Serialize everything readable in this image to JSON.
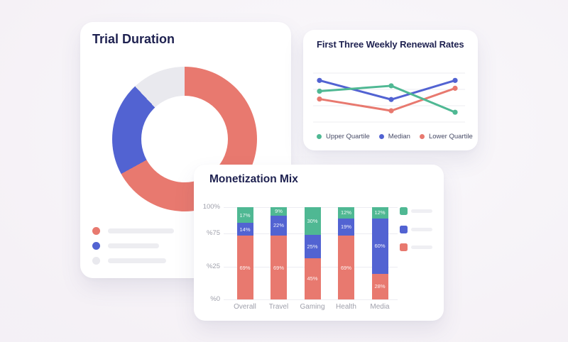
{
  "colors": {
    "coral": "#E8796F",
    "blue": "#5263D2",
    "green": "#4FB893",
    "gray_segment": "#E9E9EE",
    "title_navy": "#1E2150",
    "axis_gray": "#9FA0AB"
  },
  "cards": {
    "trial_duration": {
      "title": "Trial Duration"
    },
    "renewal": {
      "title": "First Three Weekly Renewal Rates"
    },
    "monetization": {
      "title": "Monetization Mix"
    }
  },
  "chart_data": [
    {
      "type": "pie",
      "subtype": "donut",
      "title": "Trial Duration",
      "labels": [
        "coral-segment",
        "blue-segment",
        "gray-segment"
      ],
      "values": [
        67,
        21,
        12
      ],
      "colors": [
        "#E8796F",
        "#5263D2",
        "#E9E9EE"
      ],
      "legend_position": "bottom-left",
      "legend_note": "three placeholder skeleton rows, no text visible"
    },
    {
      "type": "line",
      "title": "First Three Weekly Renewal Rates",
      "x": [
        1,
        2,
        3
      ],
      "series": [
        {
          "name": "Upper Quartile",
          "color": "#4FB893",
          "values": [
            63,
            74,
            20
          ]
        },
        {
          "name": "Median",
          "color": "#5263D2",
          "values": [
            85,
            46,
            85
          ]
        },
        {
          "name": "Lower Quartile",
          "color": "#E8796F",
          "values": [
            47,
            23,
            69
          ]
        }
      ],
      "ylim": [
        0,
        100
      ],
      "grid": true,
      "gridlines": 4,
      "legend_position": "bottom"
    },
    {
      "type": "bar",
      "subtype": "stacked",
      "title": "Monetization Mix",
      "categories": [
        "Overall",
        "Travel",
        "Gaming",
        "Health",
        "Media"
      ],
      "series": [
        {
          "name": "coral-bottom",
          "color": "#E8796F",
          "values": [
            69,
            69,
            45,
            69,
            28
          ]
        },
        {
          "name": "blue-middle",
          "color": "#5263D2",
          "values": [
            14,
            22,
            25,
            19,
            60
          ]
        },
        {
          "name": "green-top",
          "color": "#4FB893",
          "values": [
            17,
            9,
            30,
            12,
            12
          ]
        }
      ],
      "bar_labels": [
        [
          "69%",
          "14%",
          "17%"
        ],
        [
          "69%",
          "22%",
          "9%"
        ],
        [
          "45%",
          "25%",
          "30%"
        ],
        [
          "69%",
          "19%",
          "12%"
        ],
        [
          "28%",
          "60%",
          "12%"
        ]
      ],
      "y_ticks": [
        "100%",
        "%75",
        "%25",
        "%0"
      ],
      "ylim": [
        0,
        100
      ],
      "legend_position": "right",
      "legend_note": "three color swatches with placeholder skeleton bars, no text visible"
    }
  ]
}
